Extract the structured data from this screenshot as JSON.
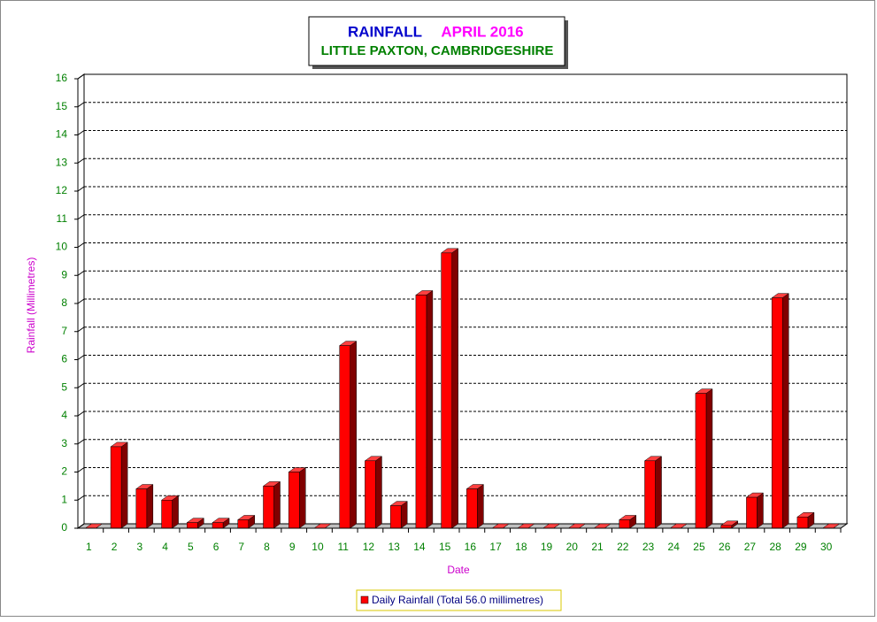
{
  "chart_data": {
    "type": "bar3d",
    "title": "RAINFALL",
    "title_month": "APRIL 2016",
    "subtitle": "LITTLE PAXTON, CAMBRIDGESHIRE",
    "x_label": "Date",
    "y_label": "Rainfall  (Millimetres)",
    "categories": [
      "1",
      "2",
      "3",
      "4",
      "5",
      "6",
      "7",
      "8",
      "9",
      "10",
      "11",
      "12",
      "13",
      "14",
      "15",
      "16",
      "17",
      "18",
      "19",
      "20",
      "21",
      "22",
      "23",
      "24",
      "25",
      "26",
      "27",
      "28",
      "29",
      "30"
    ],
    "series": [
      {
        "name": "Daily Rainfall (Total 56.0 millimetres)",
        "color": "#ff0000",
        "values": [
          0,
          2.9,
          1.4,
          1.0,
          0.2,
          0.2,
          0.3,
          1.5,
          2.0,
          0,
          6.5,
          2.4,
          0.8,
          8.3,
          9.8,
          1.4,
          0,
          0,
          0,
          0,
          0,
          0.3,
          2.4,
          0,
          4.8,
          0.1,
          1.1,
          8.2,
          0.4,
          0
        ]
      }
    ],
    "ylim": [
      0,
      16
    ],
    "yticks": [
      0,
      1,
      2,
      3,
      4,
      5,
      6,
      7,
      8,
      9,
      10,
      11,
      12,
      13,
      14,
      15,
      16
    ],
    "grid": true
  }
}
